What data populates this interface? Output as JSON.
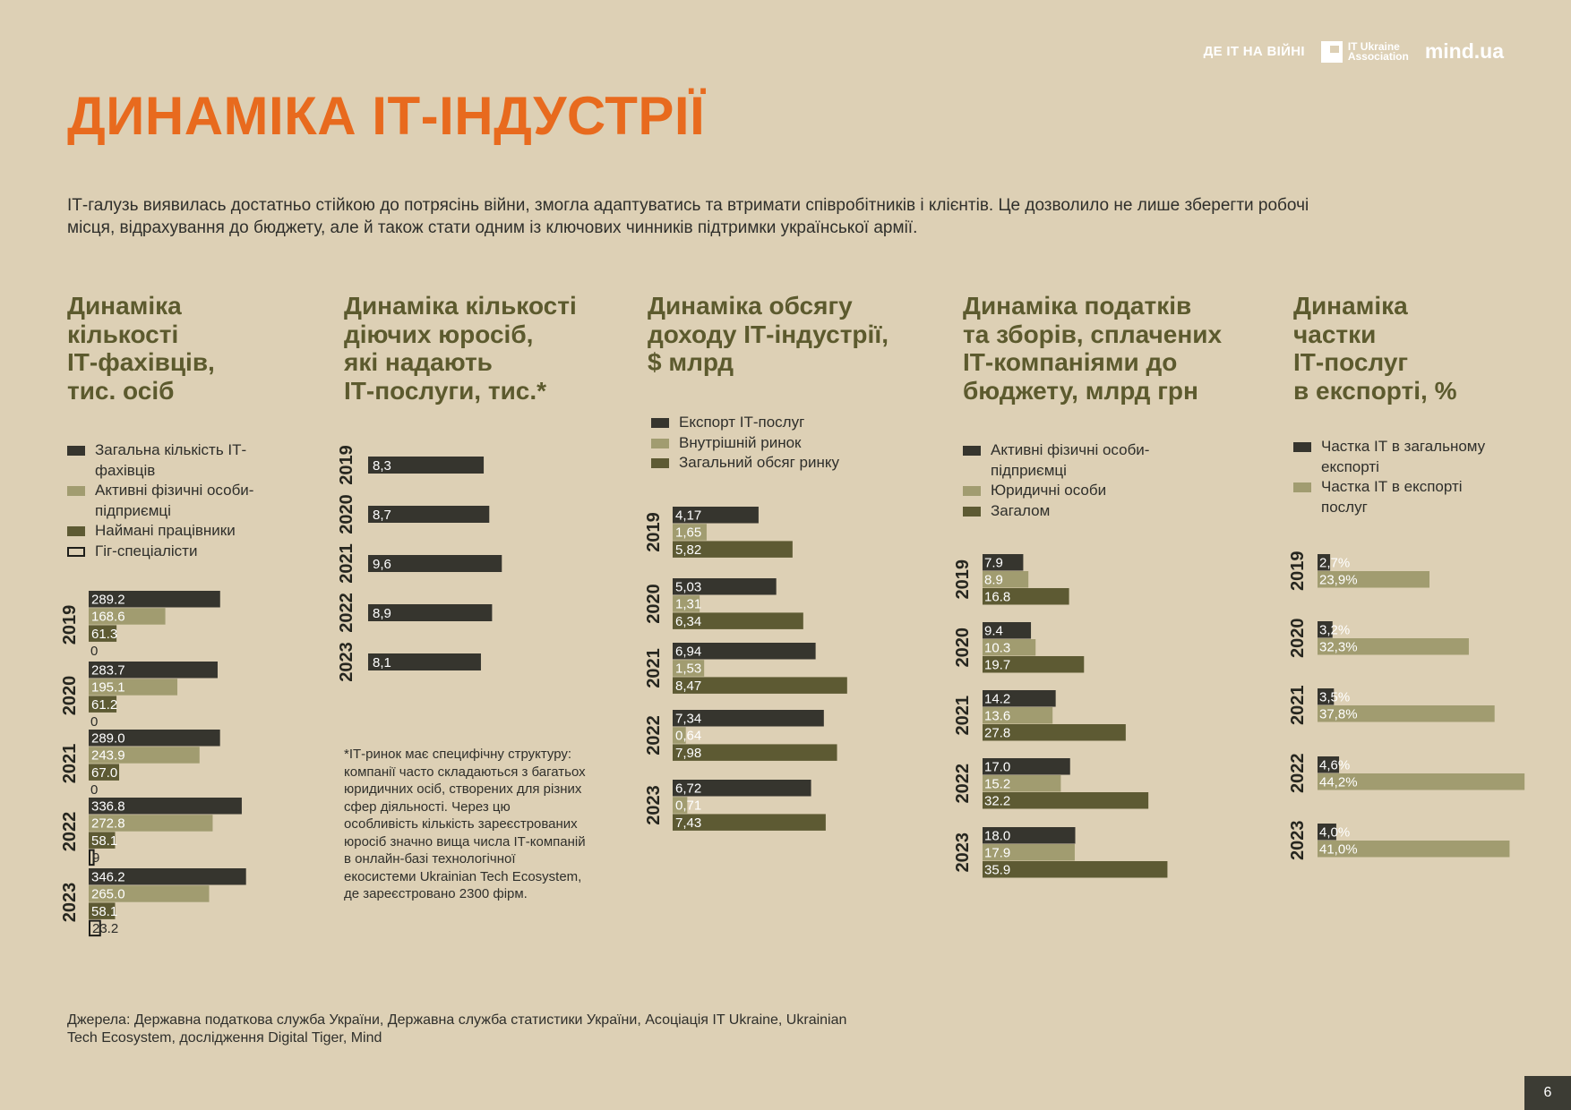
{
  "header": {
    "brand_war": "ДЕ ІТ НА ВІЙНІ",
    "brand_assoc_line1": "IT Ukraine",
    "brand_assoc_line2": "Association",
    "brand_mind": "mind.ua"
  },
  "title": "ДИНАМІКА ІТ-ІНДУСТРІЇ",
  "intro": "ІТ-галузь виявилась достатньо стійкою до потрясінь війни, змогла адаптуватись та втримати співробітників і клієнтів. Це дозволило не лише зберегти робочі місця, відрахування до бюджету, але й також стати одним із ключових чинників підтримки української армії.",
  "colors": {
    "dark": "#36352e",
    "light": "#a19c70",
    "olive": "#5d5a33",
    "outline": "#ffffff",
    "accent": "#e86a1e"
  },
  "footnote": "*ІТ-ринок має специфічну структуру: компанії часто складаються з багатьох юридичних осіб, створених для різних сфер діяльності. Через цю особливість кількість зареєстрованих юросіб значно вища числа ІТ-компаній в онлайн-базі технологічної екосистеми Ukrainian Tech Ecosystem, де зареєстровано 2300 фірм.",
  "sources": "Джерела: Державна податкова служба України, Державна служба статистики України, Асоціація IT Ukraine, Ukrainian Tech Ecosystem, дослідження Digital Tiger, Mind",
  "page_number": "6",
  "chart_data": [
    {
      "type": "bar",
      "title": "Динаміка\nкількості\nІТ-фахівців,\nтис. осіб",
      "categories": [
        "2019",
        "2020",
        "2021",
        "2022",
        "2023"
      ],
      "series": [
        {
          "name": "Загальна кількість ІТ-фахівців",
          "color": "dark",
          "values": [
            289.2,
            283.7,
            289.0,
            336.8,
            346.2
          ],
          "labels": [
            "289.2",
            "283.7",
            "289.0",
            "336.8",
            "346.2"
          ]
        },
        {
          "name": "Активні фізичні особи-підприємці",
          "color": "light",
          "values": [
            168.6,
            195.1,
            243.9,
            272.8,
            265.0
          ],
          "labels": [
            "168.6",
            "195.1",
            "243.9",
            "272.8",
            "265.0"
          ]
        },
        {
          "name": "Наймані працівники",
          "color": "olive",
          "values": [
            61.3,
            61.2,
            67.0,
            58.1,
            58.1
          ],
          "labels": [
            "61.3",
            "61.2",
            "67.0",
            "58.1",
            "58.1"
          ]
        },
        {
          "name": "Гіг-спеціалісти",
          "color": "outline",
          "values": [
            0,
            0,
            0,
            9,
            23.2
          ],
          "labels": [
            "0",
            "0",
            "0",
            "9",
            "23.2"
          ]
        }
      ]
    },
    {
      "type": "bar",
      "title": "Динаміка кількості\nдіючих юросіб,\nякі надають\nІТ-послуги, тис.*",
      "categories": [
        "2019",
        "2020",
        "2021",
        "2022",
        "2023"
      ],
      "series": [
        {
          "color": "dark",
          "values": [
            8.3,
            8.7,
            9.6,
            8.9,
            8.1
          ],
          "labels": [
            "8,3",
            "8,7",
            "9,6",
            "8,9",
            "8,1"
          ]
        }
      ]
    },
    {
      "type": "bar",
      "title": "Динаміка обсягу\nдоходу ІТ-індустрії,\n$ млрд",
      "categories": [
        "2019",
        "2020",
        "2021",
        "2022",
        "2023"
      ],
      "series": [
        {
          "name": "Експорт ІТ-послуг",
          "color": "dark",
          "values": [
            4.17,
            5.03,
            6.94,
            7.34,
            6.72
          ],
          "labels": [
            "4,17",
            "5,03",
            "6,94",
            "7,34",
            "6,72"
          ]
        },
        {
          "name": "Внутрішній ринок",
          "color": "light",
          "values": [
            1.65,
            1.31,
            1.53,
            0.64,
            0.71
          ],
          "labels": [
            "1,65",
            "1,31",
            "1,53",
            "0,64",
            "0,71"
          ]
        },
        {
          "name": "Загальний обсяг ринку",
          "color": "olive",
          "values": [
            5.82,
            6.34,
            8.47,
            7.98,
            7.43
          ],
          "labels": [
            "5,82",
            "6,34",
            "8,47",
            "7,98",
            "7,43"
          ]
        }
      ]
    },
    {
      "type": "bar",
      "title": "Динаміка податків\nта зборів, сплачених\nІТ-компаніями до\nбюджету, млрд грн",
      "categories": [
        "2019",
        "2020",
        "2021",
        "2022",
        "2023"
      ],
      "series": [
        {
          "name": "Активні фізичні особи-підприємці",
          "color": "dark",
          "values": [
            7.9,
            9.4,
            14.2,
            17.0,
            18.0
          ],
          "labels": [
            "7.9",
            "9.4",
            "14.2",
            "17.0",
            "18.0"
          ]
        },
        {
          "name": "Юридичні особи",
          "color": "light",
          "values": [
            8.9,
            10.3,
            13.6,
            15.2,
            17.9
          ],
          "labels": [
            "8.9",
            "10.3",
            "13.6",
            "15.2",
            "17.9"
          ]
        },
        {
          "name": "Загалом",
          "color": "olive",
          "values": [
            16.8,
            19.7,
            27.8,
            32.2,
            35.9
          ],
          "labels": [
            "16.8",
            "19.7",
            "27.8",
            "32.2",
            "35.9"
          ]
        }
      ]
    },
    {
      "type": "bar",
      "title": "Динаміка\nчастки\nІТ-послуг\nв експорті, %",
      "categories": [
        "2019",
        "2020",
        "2021",
        "2022",
        "2023"
      ],
      "series": [
        {
          "name": "Частка ІТ в загальному експорті",
          "color": "dark",
          "values": [
            2.7,
            3.2,
            3.5,
            4.6,
            4.0
          ],
          "labels": [
            "2,7%",
            "3,2%",
            "3,5%",
            "4,6%",
            "4,0%"
          ]
        },
        {
          "name": "Частка ІТ в експорті послуг",
          "color": "light",
          "values": [
            23.9,
            32.3,
            37.8,
            44.2,
            41.0
          ],
          "labels": [
            "23,9%",
            "32,3%",
            "37,8%",
            "44,2%",
            "41,0%"
          ]
        }
      ]
    }
  ]
}
